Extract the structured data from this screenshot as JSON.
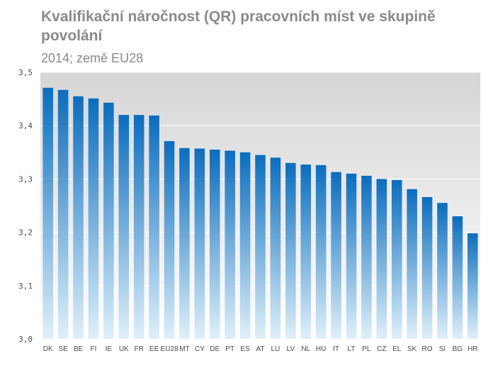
{
  "chart_data": {
    "type": "bar",
    "title": "Kvalifikační náročnost (QR)  pracovních míst ve skupině povolání",
    "subtitle": "2014; země EU28",
    "xlabel": "",
    "ylabel": "",
    "ylim": [
      3.0,
      3.5
    ],
    "yticks": [
      "3,0",
      "3,1",
      "3,2",
      "3,3",
      "3,4",
      "3,5"
    ],
    "grid": true,
    "categories": [
      "DK",
      "SE",
      "BE",
      "FI",
      "IE",
      "UK",
      "FR",
      "EE",
      "EU28",
      "MT",
      "CY",
      "DE",
      "PT",
      "ES",
      "AT",
      "LU",
      "LV",
      "NL",
      "HU",
      "IT",
      "LT",
      "PL",
      "CZ",
      "EL",
      "SK",
      "RO",
      "SI",
      "BG",
      "HR"
    ],
    "values": [
      3.471,
      3.467,
      3.455,
      3.451,
      3.443,
      3.42,
      3.42,
      3.419,
      3.371,
      3.358,
      3.357,
      3.355,
      3.353,
      3.35,
      3.345,
      3.34,
      3.33,
      3.327,
      3.326,
      3.313,
      3.31,
      3.306,
      3.3,
      3.298,
      3.281,
      3.266,
      3.255,
      3.23,
      3.198
    ],
    "colors": {
      "bar_top": "#0b6dbd",
      "bar_bottom": "#dff0fa",
      "plot_bg_top": "#d6d6d6",
      "plot_bg_bottom": "#ffffff",
      "grid": "#ffffff",
      "text": "#8a8a8a"
    }
  }
}
